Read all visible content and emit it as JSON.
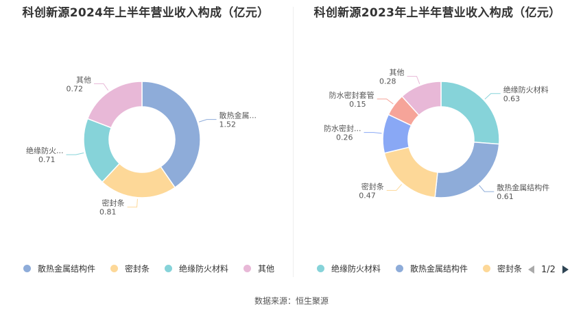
{
  "chart_data": [
    {
      "type": "pie",
      "title": "科创新源2024年上半年营业收入构成（亿元）",
      "slices": [
        {
          "name": "散热金属结构件",
          "short": "散热金属...",
          "value": 1.52,
          "label": "1.52",
          "color": "#8eacd9"
        },
        {
          "name": "密封条",
          "short": "密封条",
          "value": 0.81,
          "label": "0.81",
          "color": "#fdd898"
        },
        {
          "name": "绝缘防火材料",
          "short": "绝缘防火...",
          "value": 0.71,
          "label": "0.71",
          "color": "#86d3d9"
        },
        {
          "name": "其他",
          "short": "其他",
          "value": 0.72,
          "label": "0.72",
          "color": "#e8b8d7"
        }
      ],
      "legend": [
        "散热金属结构件",
        "密封条",
        "绝缘防火材料",
        "其他"
      ]
    },
    {
      "type": "pie",
      "title": "科创新源2023年上半年营业收入构成（亿元）",
      "slices": [
        {
          "name": "绝缘防火材料",
          "short": "绝缘防火材料",
          "value": 0.63,
          "label": "0.63",
          "color": "#86d3d9"
        },
        {
          "name": "散热金属结构件",
          "short": "散热金属结构件",
          "value": 0.61,
          "label": "0.61",
          "color": "#8eacd9"
        },
        {
          "name": "密封条",
          "short": "密封条",
          "value": 0.47,
          "label": "0.47",
          "color": "#fdd898"
        },
        {
          "name": "防水密封...",
          "short": "防水密封...",
          "value": 0.26,
          "label": "0.26",
          "color": "#89a8f5"
        },
        {
          "name": "防水密封套管",
          "short": "防水密封套管",
          "value": 0.15,
          "label": "0.15",
          "color": "#f6a499"
        },
        {
          "name": "其他",
          "short": "其他",
          "value": 0.28,
          "label": "0.28",
          "color": "#e8b8d7"
        }
      ],
      "legend": [
        "绝缘防火材料",
        "散热金属结构件",
        "密封条"
      ]
    }
  ],
  "pager": {
    "text": "1/2"
  },
  "source": "数据来源：恒生聚源"
}
